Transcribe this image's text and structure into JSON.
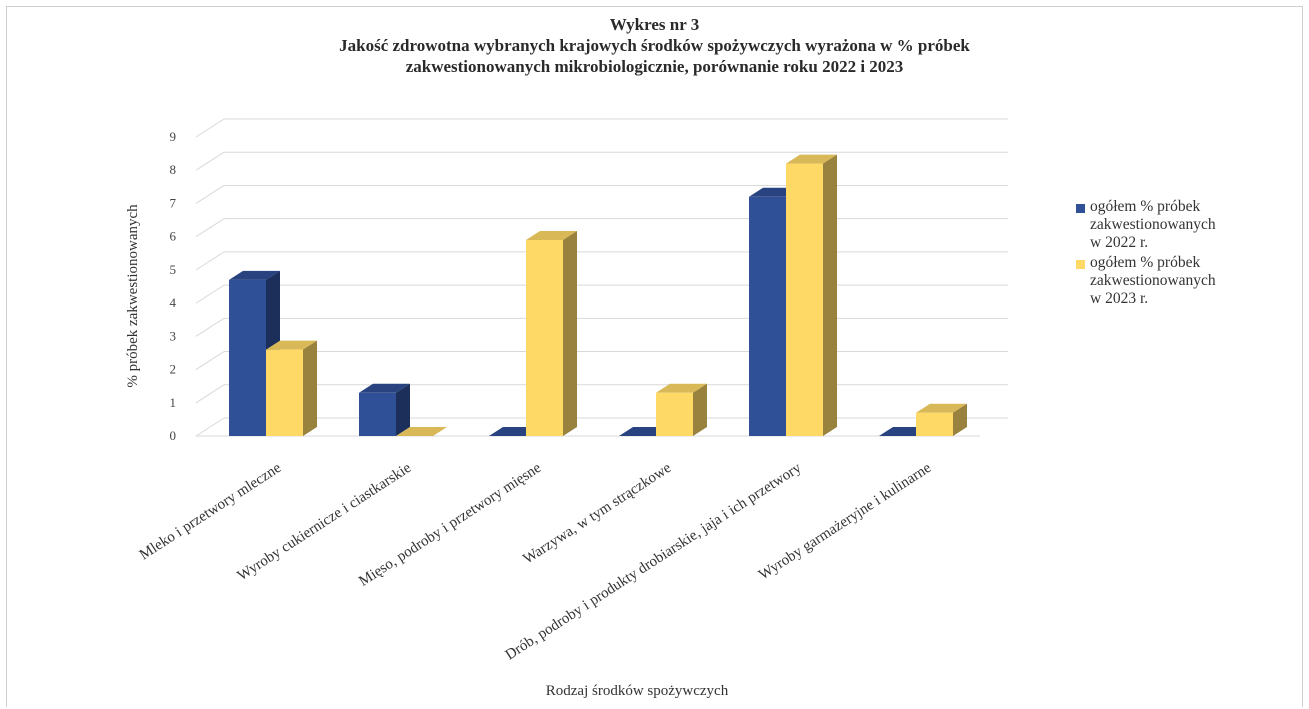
{
  "chart_data": {
    "type": "bar",
    "title_lines": [
      "Wykres nr 3",
      "Jakość zdrowotna wybranych krajowych środków spożywczych wyrażona w % próbek",
      "zakwestionowanych mikrobiologicznie, porównanie roku 2022 i 2023"
    ],
    "xlabel": "Rodzaj środków spożywczych",
    "ylabel": "% próbek zakwestionowanych",
    "ylim": [
      0,
      9
    ],
    "yticks": [
      "0",
      "1",
      "2",
      "3",
      "4",
      "5",
      "6",
      "7",
      "8",
      "9"
    ],
    "categories": [
      "Mleko i przetwory mleczne",
      "Wyroby cukiernicze i ciastkarskie",
      "Mięso, podroby i przetwory mięsne",
      "Warzywa, w tym strączkowe",
      "Drób, podroby i produkty drobiarskie, jaja i ich przetwory",
      "Wyroby garmażeryjne i kulinarne"
    ],
    "series": [
      {
        "name_lines": [
          "ogółem % próbek",
          "zakwestionowanych",
          "w 2022 r."
        ],
        "color": "#2f4f97",
        "values": [
          4.7,
          1.3,
          0,
          0,
          7.2,
          0
        ]
      },
      {
        "name_lines": [
          "ogółem % próbek",
          "zakwestionowanych",
          "w 2023 r."
        ],
        "color": "#ffd966",
        "values": [
          2.6,
          0,
          5.9,
          1.3,
          8.2,
          0.7
        ]
      }
    ],
    "grid": true,
    "style": "3d-clustered-column",
    "legend_position": "right"
  }
}
